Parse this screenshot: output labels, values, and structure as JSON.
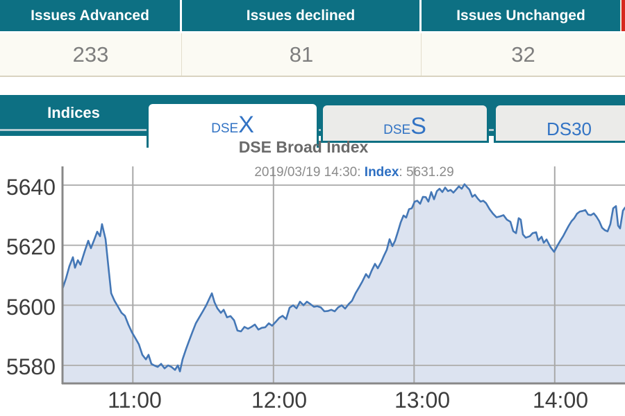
{
  "stats": {
    "columns": [
      {
        "header": "Issues Advanced",
        "value": "233"
      },
      {
        "header": "Issues declined",
        "value": "81"
      },
      {
        "header": "Issues Unchanged",
        "value": "32"
      }
    ]
  },
  "tabs": {
    "section_label": "Indices",
    "items": [
      {
        "name": "DSEX",
        "prefix": "DSE",
        "suffix": "X",
        "active": true
      },
      {
        "name": "DSES",
        "prefix": "DSE",
        "suffix": "S",
        "active": false
      },
      {
        "name": "DS30",
        "prefix": "DS30",
        "suffix": "",
        "active": false
      }
    ]
  },
  "colors": {
    "teal": "#0d7083",
    "header_edge_red": "#d6281e",
    "tab_text_blue": "#3273c4",
    "line": "#4477b6",
    "fill": "#dce3f0"
  },
  "chart_data": {
    "type": "area",
    "title": "DSE Broad Index",
    "subtitle_datetime": "2019/03/19 14:30: ",
    "subtitle_label": "Index",
    "subtitle_value": ": 5631.29",
    "last_index_value": 5631.29,
    "x_unit": "time of day (decimal hours)",
    "x_range": [
      10.5,
      14.5
    ],
    "y_visible_range": [
      5574,
      5646
    ],
    "grid": true,
    "legend": false,
    "line_color": "#4477b6",
    "fill_color": "#dce3f0",
    "xticks": [
      {
        "value": 11,
        "label": "11:00"
      },
      {
        "value": 12,
        "label": "12:00"
      },
      {
        "value": 13,
        "label": "13:00"
      },
      {
        "value": 14,
        "label": "14:00"
      }
    ],
    "yticks": [
      {
        "value": 5640,
        "label": "5640"
      },
      {
        "value": 5620,
        "label": "5620"
      },
      {
        "value": 5600,
        "label": "5600"
      },
      {
        "value": 5580,
        "label": "5580"
      }
    ],
    "series": [
      {
        "name": "DSE Broad Index",
        "points": [
          [
            10.5,
            5605.5
          ],
          [
            10.525,
            5609
          ],
          [
            10.549,
            5613
          ],
          [
            10.574,
            5616
          ],
          [
            10.589,
            5612.5
          ],
          [
            10.609,
            5615
          ],
          [
            10.628,
            5613.5
          ],
          [
            10.658,
            5618
          ],
          [
            10.683,
            5621.5
          ],
          [
            10.702,
            5619
          ],
          [
            10.727,
            5622
          ],
          [
            10.747,
            5624.5
          ],
          [
            10.767,
            5623
          ],
          [
            10.781,
            5627
          ],
          [
            10.806,
            5622
          ],
          [
            10.826,
            5613
          ],
          [
            10.846,
            5604
          ],
          [
            10.87,
            5601.5
          ],
          [
            10.895,
            5599.5
          ],
          [
            10.92,
            5597.5
          ],
          [
            10.944,
            5596.5
          ],
          [
            10.969,
            5593.5
          ],
          [
            10.994,
            5591
          ],
          [
            11.019,
            5589
          ],
          [
            11.043,
            5587
          ],
          [
            11.068,
            5583.5
          ],
          [
            11.093,
            5582
          ],
          [
            11.112,
            5583.5
          ],
          [
            11.132,
            5580.5
          ],
          [
            11.152,
            5580
          ],
          [
            11.177,
            5579.5
          ],
          [
            11.201,
            5580.5
          ],
          [
            11.226,
            5579
          ],
          [
            11.251,
            5580
          ],
          [
            11.275,
            5579.5
          ],
          [
            11.3,
            5578.5
          ],
          [
            11.32,
            5580
          ],
          [
            11.335,
            5578
          ],
          [
            11.354,
            5582
          ],
          [
            11.379,
            5585.5
          ],
          [
            11.399,
            5588
          ],
          [
            11.423,
            5591
          ],
          [
            11.448,
            5594
          ],
          [
            11.473,
            5596
          ],
          [
            11.498,
            5598
          ],
          [
            11.522,
            5600
          ],
          [
            11.547,
            5602.5
          ],
          [
            11.562,
            5604
          ],
          [
            11.581,
            5601
          ],
          [
            11.601,
            5599
          ],
          [
            11.626,
            5597.5
          ],
          [
            11.646,
            5598.5
          ],
          [
            11.67,
            5596
          ],
          [
            11.695,
            5596.4
          ],
          [
            11.72,
            5595
          ],
          [
            11.744,
            5591.6
          ],
          [
            11.769,
            5591.3
          ],
          [
            11.794,
            5592.8
          ],
          [
            11.819,
            5592.2
          ],
          [
            11.843,
            5592.8
          ],
          [
            11.868,
            5593.6
          ],
          [
            11.893,
            5591.9
          ],
          [
            11.917,
            5592.5
          ],
          [
            11.942,
            5592.7
          ],
          [
            11.967,
            5594
          ],
          [
            11.991,
            5593.2
          ],
          [
            12.016,
            5594.5
          ],
          [
            12.041,
            5595.8
          ],
          [
            12.065,
            5596.5
          ],
          [
            12.09,
            5595.4
          ],
          [
            12.115,
            5599.2
          ],
          [
            12.14,
            5600
          ],
          [
            12.164,
            5599
          ],
          [
            12.189,
            5601.2
          ],
          [
            12.214,
            5600
          ],
          [
            12.238,
            5601.2
          ],
          [
            12.263,
            5600.4
          ],
          [
            12.288,
            5599.5
          ],
          [
            12.312,
            5599.7
          ],
          [
            12.337,
            5599.3
          ],
          [
            12.362,
            5598
          ],
          [
            12.386,
            5598.1
          ],
          [
            12.411,
            5598.5
          ],
          [
            12.436,
            5598
          ],
          [
            12.46,
            5599.3
          ],
          [
            12.485,
            5600
          ],
          [
            12.51,
            5598.9
          ],
          [
            12.535,
            5600.4
          ],
          [
            12.559,
            5601.5
          ],
          [
            12.584,
            5604
          ],
          [
            12.609,
            5606
          ],
          [
            12.633,
            5608
          ],
          [
            12.658,
            5610.4
          ],
          [
            12.678,
            5609.2
          ],
          [
            12.698,
            5611.5
          ],
          [
            12.722,
            5613.8
          ],
          [
            12.742,
            5612.3
          ],
          [
            12.767,
            5614.5
          ],
          [
            12.786,
            5616.5
          ],
          [
            12.806,
            5618.5
          ],
          [
            12.826,
            5622
          ],
          [
            12.846,
            5619.7
          ],
          [
            12.865,
            5621.5
          ],
          [
            12.885,
            5624.5
          ],
          [
            12.905,
            5627.6
          ],
          [
            12.925,
            5629.9
          ],
          [
            12.944,
            5629.2
          ],
          [
            12.964,
            5632
          ],
          [
            12.984,
            5632.3
          ],
          [
            13.004,
            5634.5
          ],
          [
            13.023,
            5634.8
          ],
          [
            13.043,
            5633.8
          ],
          [
            13.063,
            5636.1
          ],
          [
            13.083,
            5636
          ],
          [
            13.102,
            5634.5
          ],
          [
            13.122,
            5637.7
          ],
          [
            13.142,
            5635.3
          ],
          [
            13.162,
            5638
          ],
          [
            13.181,
            5638.8
          ],
          [
            13.201,
            5637.7
          ],
          [
            13.221,
            5639.2
          ],
          [
            13.241,
            5638
          ],
          [
            13.26,
            5638.4
          ],
          [
            13.28,
            5637.5
          ],
          [
            13.3,
            5638.6
          ],
          [
            13.319,
            5639.6
          ],
          [
            13.339,
            5638.8
          ],
          [
            13.359,
            5640.3
          ],
          [
            13.374,
            5639.5
          ],
          [
            13.394,
            5638.5
          ],
          [
            13.414,
            5636.1
          ],
          [
            13.433,
            5636.8
          ],
          [
            13.453,
            5635.5
          ],
          [
            13.473,
            5634.5
          ],
          [
            13.492,
            5634.8
          ],
          [
            13.512,
            5634
          ],
          [
            13.537,
            5632
          ],
          [
            13.561,
            5630.5
          ],
          [
            13.586,
            5629.3
          ],
          [
            13.611,
            5629.6
          ],
          [
            13.636,
            5630
          ],
          [
            13.66,
            5628.5
          ],
          [
            13.685,
            5627.8
          ],
          [
            13.705,
            5624.7
          ],
          [
            13.725,
            5624
          ],
          [
            13.744,
            5629
          ],
          [
            13.759,
            5628.5
          ],
          [
            13.774,
            5623.6
          ],
          [
            13.794,
            5622.5
          ],
          [
            13.823,
            5623
          ],
          [
            13.843,
            5624
          ],
          [
            13.868,
            5624.3
          ],
          [
            13.883,
            5621.6
          ],
          [
            13.907,
            5622.8
          ],
          [
            13.922,
            5620.8
          ],
          [
            13.942,
            5621.9
          ],
          [
            13.971,
            5619.3
          ],
          [
            13.996,
            5617.8
          ],
          [
            14.021,
            5620
          ],
          [
            14.041,
            5621.6
          ],
          [
            14.06,
            5623
          ],
          [
            14.08,
            5624.8
          ],
          [
            14.1,
            5626.5
          ],
          [
            14.12,
            5628
          ],
          [
            14.139,
            5629
          ],
          [
            14.159,
            5630.5
          ],
          [
            14.179,
            5631.2
          ],
          [
            14.199,
            5631.4
          ],
          [
            14.218,
            5631.7
          ],
          [
            14.238,
            5630.2
          ],
          [
            14.258,
            5630
          ],
          [
            14.278,
            5630.6
          ],
          [
            14.297,
            5629.5
          ],
          [
            14.317,
            5628
          ],
          [
            14.337,
            5625.8
          ],
          [
            14.357,
            5625
          ],
          [
            14.376,
            5624.6
          ],
          [
            14.396,
            5627
          ],
          [
            14.416,
            5632.3
          ],
          [
            14.436,
            5633
          ],
          [
            14.451,
            5626.5
          ],
          [
            14.465,
            5625.6
          ],
          [
            14.485,
            5631.5
          ],
          [
            14.5,
            5632.5
          ]
        ]
      }
    ]
  }
}
